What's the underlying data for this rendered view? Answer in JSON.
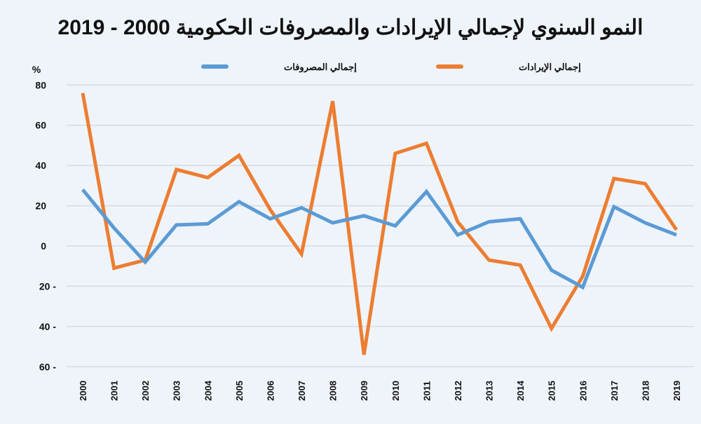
{
  "chart_data": {
    "type": "line",
    "title": "النمو السنوي لإجمالي الإيرادات والمصروفات الحكومية 2000 - 2019",
    "ylabel": "%",
    "xlabel": "",
    "ylim": [
      -60,
      80
    ],
    "yticks": [
      80,
      60,
      40,
      20,
      0,
      -20,
      -40,
      -60
    ],
    "ytick_labels": [
      "80",
      "60",
      "40",
      "20",
      "0",
      "20 -",
      "40 -",
      "60 -"
    ],
    "grid": true,
    "legend_position": "top",
    "categories": [
      "2000",
      "2001",
      "2002",
      "2003",
      "2004",
      "2005",
      "2006",
      "2007",
      "2008",
      "2009",
      "2010",
      "2011",
      "2012",
      "2013",
      "2014",
      "2015",
      "2016",
      "2017",
      "2018",
      "2019"
    ],
    "series": [
      {
        "name": "إجمالي المصروفات",
        "color": "#5b9bd5",
        "values": [
          28,
          9,
          -8,
          10.5,
          11,
          22,
          13.5,
          19,
          11.5,
          15,
          10,
          27,
          5.5,
          12,
          13.5,
          -12,
          -20.5,
          19.5,
          11.5,
          5.5
        ]
      },
      {
        "name": "إجمالي الإيرادات",
        "color": "#ed7d31",
        "values": [
          76,
          -11,
          -7,
          38,
          34,
          45,
          18,
          -4,
          72,
          -54,
          46,
          51,
          12,
          -7,
          -9.5,
          -41,
          -15,
          33.5,
          31,
          8
        ]
      }
    ]
  }
}
